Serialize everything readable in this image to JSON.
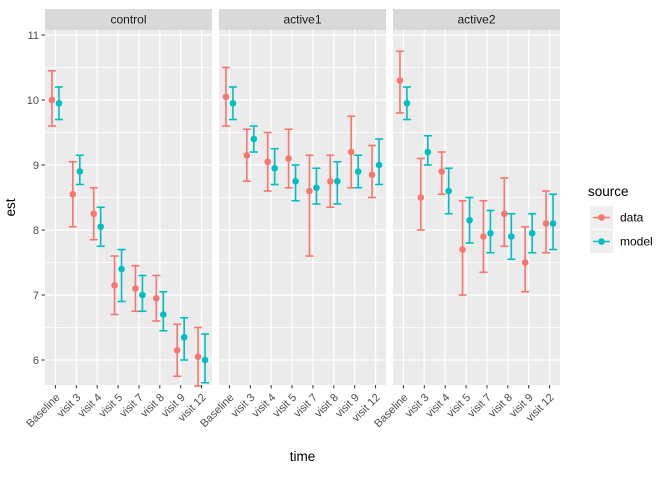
{
  "chart_data": {
    "type": "pointrange",
    "xlabel": "time",
    "ylabel": "est",
    "categories": [
      "Baseline",
      "visit 3",
      "visit 4",
      "visit 5",
      "visit 7",
      "visit 8",
      "visit 9",
      "visit 12"
    ],
    "y_axis": {
      "ticks": [
        11,
        10,
        9,
        8,
        7,
        6
      ],
      "minor_ticks": [
        10.5,
        9.5,
        8.5,
        7.5,
        6.5
      ],
      "range": [
        5.6,
        11.08
      ],
      "grid": "on"
    },
    "legend": {
      "title": "source",
      "position": "right",
      "items": [
        {
          "label": "data",
          "color": "#F8766D"
        },
        {
          "label": "model",
          "color": "#00BFC4"
        }
      ]
    },
    "style": {
      "panel_bg": "#EBEBEB",
      "strip_bg": "#D9D9D9",
      "grid_color": "#FFFFFF",
      "tick_label_color": "#4D4D4D",
      "strip_text_color": "#1A1A1A",
      "legend_key_bg": "#EFEFEF"
    },
    "facets": [
      {
        "label": "control",
        "series": [
          {
            "name": "data",
            "est": [
              10.0,
              8.55,
              8.25,
              7.15,
              7.1,
              6.95,
              6.15,
              6.05
            ],
            "lo": [
              9.6,
              8.05,
              7.85,
              6.7,
              6.75,
              6.6,
              5.75,
              5.6
            ],
            "hi": [
              10.45,
              9.05,
              8.65,
              7.6,
              7.45,
              7.3,
              6.55,
              6.5
            ]
          },
          {
            "name": "model",
            "est": [
              9.95,
              8.9,
              8.05,
              7.4,
              7.0,
              6.7,
              6.35,
              6.0
            ],
            "lo": [
              9.7,
              8.7,
              7.75,
              6.9,
              6.75,
              6.45,
              6.0,
              5.65
            ],
            "hi": [
              10.2,
              9.15,
              8.35,
              7.7,
              7.3,
              7.05,
              6.65,
              6.4
            ]
          }
        ]
      },
      {
        "label": "active1",
        "series": [
          {
            "name": "data",
            "est": [
              10.05,
              9.15,
              9.05,
              9.1,
              8.6,
              8.75,
              9.2,
              8.85
            ],
            "lo": [
              9.6,
              8.75,
              8.6,
              8.65,
              7.6,
              8.35,
              8.65,
              8.5
            ],
            "hi": [
              10.5,
              9.55,
              9.5,
              9.55,
              9.15,
              9.15,
              9.75,
              9.3
            ]
          },
          {
            "name": "model",
            "est": [
              9.95,
              9.4,
              8.95,
              8.75,
              8.65,
              8.75,
              8.9,
              9.0
            ],
            "lo": [
              9.7,
              9.2,
              8.7,
              8.45,
              8.4,
              8.4,
              8.65,
              8.7
            ],
            "hi": [
              10.2,
              9.6,
              9.25,
              9.0,
              8.95,
              9.05,
              9.15,
              9.4
            ]
          }
        ]
      },
      {
        "label": "active2",
        "series": [
          {
            "name": "data",
            "est": [
              10.3,
              8.5,
              8.9,
              7.7,
              7.9,
              8.25,
              7.5,
              8.1
            ],
            "lo": [
              9.8,
              8.0,
              8.55,
              7.0,
              7.35,
              7.75,
              7.05,
              7.65
            ],
            "hi": [
              10.75,
              9.1,
              9.2,
              8.45,
              8.45,
              8.8,
              8.05,
              8.6
            ]
          },
          {
            "name": "model",
            "est": [
              9.95,
              9.2,
              8.6,
              8.15,
              7.95,
              7.9,
              7.95,
              8.1
            ],
            "lo": [
              9.7,
              9.0,
              8.25,
              7.8,
              7.65,
              7.55,
              7.65,
              7.7
            ],
            "hi": [
              10.2,
              9.45,
              8.95,
              8.5,
              8.3,
              8.25,
              8.25,
              8.55
            ]
          }
        ]
      }
    ]
  }
}
